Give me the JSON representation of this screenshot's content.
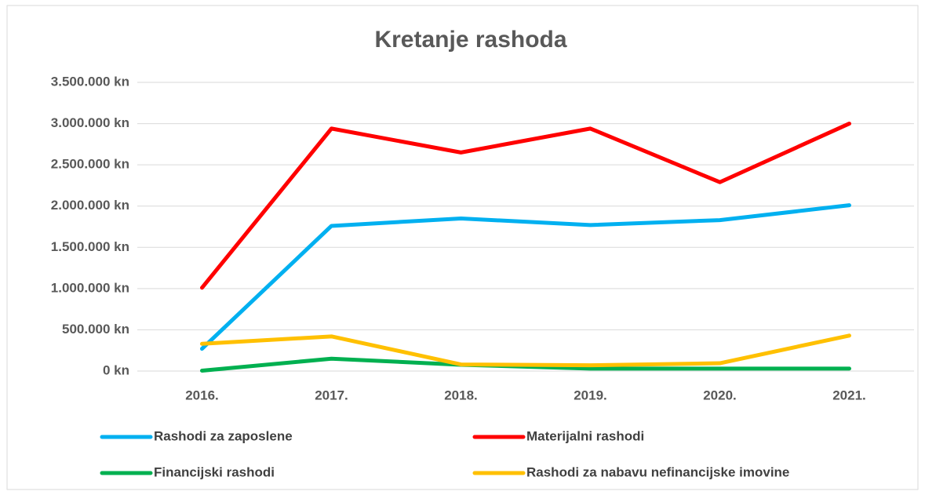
{
  "chart_data": {
    "type": "line",
    "title": "Kretanje rashoda",
    "categories": [
      "2016.",
      "2017.",
      "2018.",
      "2019.",
      "2020.",
      "2021."
    ],
    "series": [
      {
        "name": "Rashodi za zaposlene",
        "color": "#00b0f0",
        "values": [
          270000,
          1760000,
          1850000,
          1770000,
          1830000,
          2010000
        ]
      },
      {
        "name": "Materijalni rashodi",
        "color": "#ff0000",
        "values": [
          1010000,
          2940000,
          2650000,
          2940000,
          2290000,
          3000000
        ]
      },
      {
        "name": "Financijski rashodi",
        "color": "#00b050",
        "values": [
          5000,
          150000,
          76000,
          30000,
          30000,
          30000
        ]
      },
      {
        "name": "Rashodi za nabavu nefinancijske imovine",
        "color": "#ffc000",
        "values": [
          330000,
          420000,
          80000,
          70000,
          95000,
          430000
        ]
      }
    ],
    "ylim": [
      0,
      3500000
    ],
    "yticks": [
      {
        "value": 0,
        "label": "0 kn"
      },
      {
        "value": 500000,
        "label": "500.000 kn"
      },
      {
        "value": 1000000,
        "label": "1.000.000 kn"
      },
      {
        "value": 1500000,
        "label": "1.500.000 kn"
      },
      {
        "value": 2000000,
        "label": "2.000.000 kn"
      },
      {
        "value": 2500000,
        "label": "2.500.000 kn"
      },
      {
        "value": 3000000,
        "label": "3.000.000 kn"
      },
      {
        "value": 3500000,
        "label": "3.500.000 kn"
      }
    ],
    "grid": true,
    "legend": "bottom"
  }
}
